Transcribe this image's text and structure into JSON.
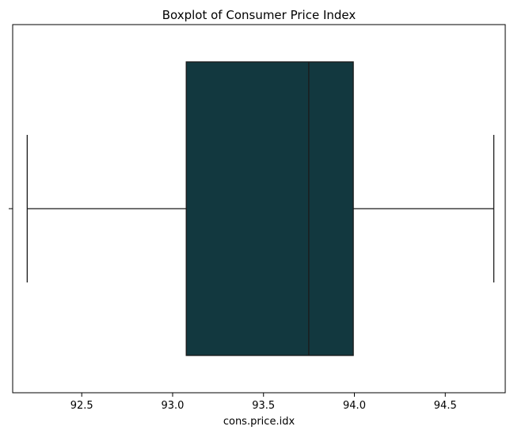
{
  "chart_data": {
    "type": "boxplot",
    "title": "Boxplot of Consumer Price Index",
    "xlabel": "cons.price.idx",
    "ylabel": "",
    "orientation": "horizontal",
    "xlim": [
      92.12,
      94.83
    ],
    "xticks": [
      92.5,
      93.0,
      93.5,
      94.0,
      94.5
    ],
    "xtick_labels": [
      "92.5",
      "93.0",
      "93.5",
      "94.0",
      "94.5"
    ],
    "grid": false,
    "box": {
      "whisker_low": 92.2,
      "q1": 93.075,
      "median": 93.749,
      "q3": 93.994,
      "whisker_high": 94.767
    },
    "box_color": "#12383f",
    "line_color": "#1a1a1a"
  }
}
